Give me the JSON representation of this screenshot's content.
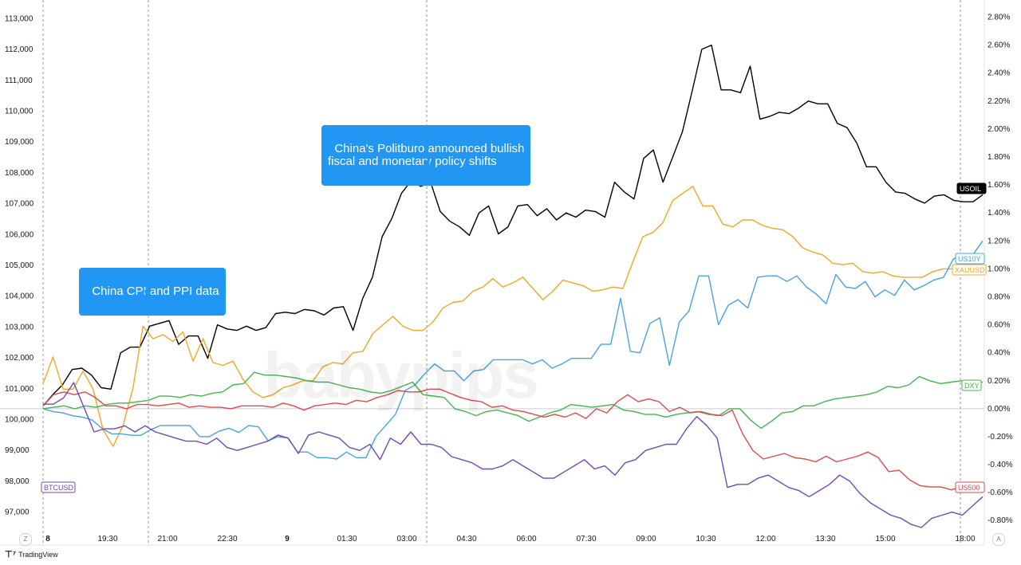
{
  "chart_data": {
    "type": "line",
    "x_ticks": [
      "8",
      "19:30",
      "21:00",
      "22:30",
      "9",
      "01:30",
      "03:00",
      "04:30",
      "06:00",
      "07:30",
      "09:00",
      "10:30",
      "12:00",
      "13:30",
      "15:00",
      "18:00"
    ],
    "left_axis": {
      "series": "BTCUSD",
      "ylim": [
        96500,
        113500
      ],
      "ticks": [
        "113,000",
        "112,000",
        "111,000",
        "110,000",
        "109,000",
        "108,000",
        "107,000",
        "106,000",
        "105,000",
        "104,000",
        "103,000",
        "102,000",
        "101,000",
        "100,000",
        "99,000",
        "98,000",
        "97,000"
      ]
    },
    "right_axis": {
      "unit": "%",
      "ylim": [
        -0.85,
        2.9
      ],
      "ticks": [
        "2.80%",
        "2.60%",
        "2.40%",
        "2.20%",
        "2.00%",
        "1.80%",
        "1.60%",
        "1.40%",
        "1.20%",
        "1.00%",
        "0.80%",
        "0.60%",
        "0.40%",
        "0.20%",
        "0.00%",
        "-0.20%",
        "-0.40%",
        "-0.60%",
        "-0.80%"
      ]
    },
    "annotations": [
      {
        "text": "China CPI and PPI data",
        "at_index": 17
      },
      {
        "text": "China's Politburo announced bullish\nfiscal and monetary policy shifts",
        "at_index": 61
      }
    ],
    "series": [
      {
        "name": "USOIL",
        "color": "#000000",
        "axis": "right",
        "values": [
          0.02,
          0.1,
          0.17,
          0.28,
          0.29,
          0.24,
          0.15,
          0.14,
          0.4,
          0.44,
          0.44,
          0.59,
          0.61,
          0.63,
          0.46,
          0.52,
          0.52,
          0.36,
          0.6,
          0.57,
          0.56,
          0.59,
          0.56,
          0.58,
          0.68,
          0.69,
          0.68,
          0.71,
          0.7,
          0.67,
          0.72,
          0.73,
          0.56,
          0.79,
          0.94,
          1.23,
          1.36,
          1.54,
          1.63,
          1.59,
          1.62,
          1.41,
          1.34,
          1.3,
          1.24,
          1.4,
          1.45,
          1.25,
          1.3,
          1.45,
          1.46,
          1.38,
          1.43,
          1.35,
          1.4,
          1.37,
          1.42,
          1.41,
          1.37,
          1.62,
          1.55,
          1.5,
          1.79,
          1.85,
          1.62,
          1.8,
          1.98,
          2.27,
          2.57,
          2.6,
          2.28,
          2.28,
          2.26,
          2.45,
          2.07,
          2.09,
          2.12,
          2.11,
          2.15,
          2.2,
          2.18,
          2.18,
          2.04,
          2.01,
          1.9,
          1.73,
          1.73,
          1.62,
          1.55,
          1.54,
          1.5,
          1.47,
          1.52,
          1.53,
          1.49,
          1.48,
          1.48,
          1.53
        ]
      },
      {
        "name": "XAUUSD",
        "color": "#f2a626",
        "axis": "right",
        "values": [
          0.18,
          0.37,
          0.14,
          0.14,
          0.27,
          0.14,
          -0.15,
          -0.27,
          -0.12,
          0.15,
          0.59,
          0.5,
          0.53,
          0.48,
          0.55,
          0.34,
          0.5,
          0.33,
          0.31,
          0.34,
          0.21,
          0.12,
          0.08,
          0.1,
          0.15,
          0.17,
          0.2,
          0.2,
          0.3,
          0.33,
          0.32,
          0.4,
          0.41,
          0.54,
          0.6,
          0.66,
          0.59,
          0.56,
          0.56,
          0.62,
          0.72,
          0.76,
          0.77,
          0.84,
          0.87,
          0.93,
          0.87,
          0.9,
          0.94,
          0.86,
          0.78,
          0.84,
          0.92,
          0.9,
          0.88,
          0.84,
          0.85,
          0.87,
          0.86,
          1.05,
          1.23,
          1.26,
          1.33,
          1.49,
          1.54,
          1.59,
          1.45,
          1.45,
          1.32,
          1.3,
          1.35,
          1.35,
          1.31,
          1.29,
          1.28,
          1.23,
          1.15,
          1.12,
          1.1,
          1.04,
          1.03,
          1.04,
          0.98,
          0.97,
          0.98,
          0.95,
          0.94,
          0.94,
          0.94,
          0.98,
          1.0,
          1.0,
          1.01,
          1.01,
          1.02
        ]
      },
      {
        "name": "US10Y",
        "color": "#4aa1e0",
        "axis": "right",
        "values": [
          0.0,
          -0.02,
          -0.03,
          -0.05,
          -0.06,
          -0.08,
          -0.14,
          -0.18,
          -0.18,
          -0.19,
          -0.19,
          -0.15,
          -0.12,
          -0.12,
          -0.12,
          -0.12,
          -0.2,
          -0.2,
          -0.16,
          -0.14,
          -0.17,
          -0.12,
          -0.13,
          -0.23,
          -0.2,
          -0.21,
          -0.31,
          -0.31,
          -0.35,
          -0.35,
          -0.36,
          -0.31,
          -0.35,
          -0.35,
          -0.2,
          -0.12,
          -0.04,
          0.13,
          0.17,
          0.25,
          0.32,
          0.27,
          0.27,
          0.2,
          0.27,
          0.28,
          0.35,
          0.35,
          0.35,
          0.35,
          0.32,
          0.35,
          0.29,
          0.32,
          0.36,
          0.36,
          0.36,
          0.46,
          0.46,
          0.79,
          0.41,
          0.4,
          0.61,
          0.65,
          0.31,
          0.62,
          0.7,
          0.95,
          0.95,
          0.6,
          0.74,
          0.78,
          0.72,
          0.94,
          0.95,
          0.95,
          0.91,
          0.95,
          0.87,
          0.82,
          0.75,
          0.96,
          0.87,
          0.86,
          0.91,
          0.8,
          0.85,
          0.81,
          0.92,
          0.85,
          0.88,
          0.92,
          0.94,
          1.07,
          1.11,
          1.1,
          1.2
        ]
      },
      {
        "name": "DXY",
        "color": "#43b54d",
        "axis": "right",
        "values": [
          0.0,
          0.01,
          0.02,
          0.0,
          0.02,
          0.01,
          0.03,
          0.04,
          0.04,
          0.05,
          0.06,
          0.09,
          0.09,
          0.08,
          0.1,
          0.09,
          0.11,
          0.12,
          0.17,
          0.18,
          0.26,
          0.24,
          0.24,
          0.23,
          0.22,
          0.2,
          0.19,
          0.19,
          0.17,
          0.15,
          0.14,
          0.12,
          0.11,
          0.13,
          0.16,
          0.19,
          0.1,
          0.09,
          0.08,
          0.0,
          -0.02,
          -0.05,
          -0.02,
          -0.01,
          -0.03,
          -0.05,
          -0.09,
          -0.06,
          -0.03,
          -0.01,
          0.03,
          0.02,
          0.01,
          0.02,
          0.03,
          -0.01,
          -0.02,
          -0.04,
          -0.04,
          -0.06,
          -0.04,
          -0.03,
          -0.02,
          -0.04,
          -0.05,
          0.0,
          0.0,
          -0.08,
          -0.14,
          -0.09,
          -0.03,
          -0.02,
          0.02,
          0.02,
          0.05,
          0.07,
          0.08,
          0.09,
          0.1,
          0.12,
          0.16,
          0.15,
          0.17,
          0.23,
          0.2,
          0.18,
          0.19,
          0.2,
          0.19,
          0.19
        ]
      },
      {
        "name": "US500",
        "color": "#e04a4a",
        "axis": "right",
        "values": [
          0.02,
          0.1,
          0.12,
          0.1,
          0.12,
          0.08,
          0.02,
          0.02,
          0.0,
          0.03,
          0.03,
          0.02,
          0.03,
          0.04,
          0.01,
          0.02,
          0.01,
          0.01,
          0.0,
          0.02,
          0.02,
          0.02,
          0.01,
          0.04,
          0.02,
          -0.01,
          0.02,
          0.03,
          0.04,
          0.03,
          0.06,
          0.05,
          0.08,
          0.1,
          0.13,
          0.12,
          0.12,
          0.14,
          0.14,
          0.11,
          0.08,
          0.06,
          0.05,
          0.01,
          0.02,
          -0.01,
          -0.02,
          -0.04,
          -0.06,
          -0.04,
          -0.06,
          -0.03,
          -0.07,
          0.0,
          -0.03,
          0.05,
          0.1,
          0.05,
          0.07,
          0.05,
          -0.02,
          0.01,
          -0.03,
          -0.02,
          -0.04,
          -0.05,
          -0.01,
          -0.18,
          -0.3,
          -0.36,
          -0.34,
          -0.32,
          -0.35,
          -0.36,
          -0.38,
          -0.34,
          -0.38,
          -0.36,
          -0.34,
          -0.31,
          -0.35,
          -0.45,
          -0.44,
          -0.51,
          -0.55,
          -0.56,
          -0.56,
          -0.58,
          -0.56,
          -0.58,
          -0.56
        ]
      },
      {
        "name": "BTCUSD",
        "color": "#6e4bb5",
        "axis": "left",
        "values": [
          100500,
          100500,
          100700,
          101200,
          100400,
          99600,
          99700,
          99700,
          99800,
          99600,
          99800,
          99600,
          99500,
          99400,
          99300,
          99300,
          99200,
          99400,
          99100,
          99000,
          99100,
          99200,
          99300,
          99500,
          99400,
          98900,
          99500,
          99600,
          99500,
          99400,
          99100,
          99000,
          99200,
          98700,
          99400,
          99200,
          99600,
          99200,
          99200,
          99100,
          98800,
          98700,
          98600,
          98400,
          98400,
          98500,
          98700,
          98500,
          98300,
          98100,
          98100,
          98300,
          98500,
          98700,
          98400,
          98500,
          98200,
          98600,
          98700,
          99000,
          99100,
          99200,
          99200,
          99700,
          100100,
          99800,
          99400,
          97800,
          97900,
          97900,
          98100,
          98200,
          98000,
          97800,
          97700,
          97500,
          97700,
          97900,
          98200,
          98000,
          97600,
          97300,
          97100,
          96900,
          96800,
          96600,
          96500,
          96800,
          96900,
          97000,
          96900,
          97200,
          97500
        ]
      }
    ],
    "legend_badges": [
      "USOIL",
      "US10Y",
      "XAUUSD",
      "DXY",
      "US500",
      "BTCUSD"
    ],
    "watermark": "babypips"
  },
  "footer": {
    "brand": "TradingView"
  }
}
